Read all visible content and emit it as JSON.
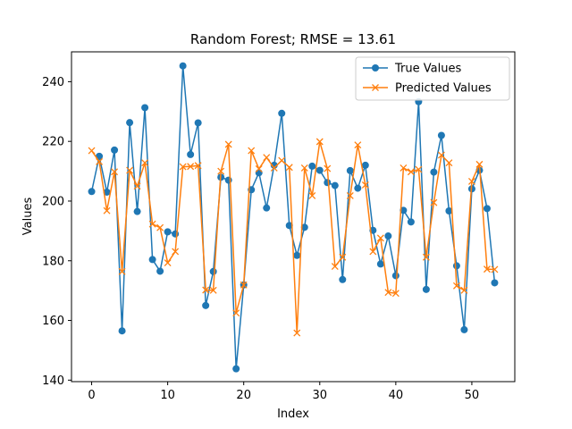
{
  "chart_data": {
    "type": "line",
    "title": "Random Forest; RMSE = 13.61",
    "xlabel": "Index",
    "ylabel": "Values",
    "xlim": [
      -2.65,
      55.65
    ],
    "ylim": [
      139.5,
      250.0
    ],
    "xticks": [
      0,
      10,
      20,
      30,
      40,
      50
    ],
    "yticks": [
      140,
      160,
      180,
      200,
      220,
      240
    ],
    "legend_position": "top-right",
    "grid": false,
    "series": [
      {
        "name": "True Values",
        "color": "#1f77b4",
        "marker": "circle",
        "x": [
          0,
          1,
          2,
          3,
          4,
          5,
          6,
          7,
          8,
          9,
          10,
          11,
          12,
          13,
          14,
          15,
          16,
          17,
          18,
          19,
          20,
          21,
          22,
          23,
          24,
          25,
          26,
          27,
          28,
          29,
          30,
          31,
          32,
          33,
          34,
          35,
          36,
          37,
          38,
          39,
          40,
          41,
          42,
          43,
          44,
          45,
          46,
          47,
          48,
          49,
          50,
          51,
          52,
          53
        ],
        "y": [
          203.2,
          215.0,
          203.0,
          217.1,
          156.5,
          226.3,
          196.5,
          231.3,
          180.4,
          176.5,
          189.7,
          189.0,
          245.3,
          215.6,
          226.2,
          165.0,
          176.4,
          208.0,
          207.0,
          143.8,
          171.9,
          203.8,
          209.5,
          197.7,
          212.0,
          229.4,
          191.8,
          181.8,
          191.2,
          211.7,
          210.3,
          206.2,
          205.2,
          173.7,
          210.2,
          204.3,
          212.0,
          190.2,
          178.9,
          188.3,
          175.0,
          196.9,
          193.0,
          233.3,
          170.4,
          209.7,
          222.0,
          196.7,
          178.3,
          156.9,
          204.1,
          210.3,
          197.5,
          172.6
        ]
      },
      {
        "name": "Predicted Values",
        "color": "#ff7f0e",
        "marker": "x",
        "x": [
          0,
          1,
          2,
          3,
          4,
          5,
          6,
          7,
          8,
          9,
          10,
          11,
          12,
          13,
          14,
          15,
          16,
          17,
          18,
          19,
          20,
          21,
          22,
          23,
          24,
          25,
          26,
          27,
          28,
          29,
          30,
          31,
          32,
          33,
          34,
          35,
          36,
          37,
          38,
          39,
          40,
          41,
          42,
          43,
          44,
          45,
          46,
          47,
          48,
          49,
          50,
          51,
          52,
          53
        ],
        "y": [
          216.9,
          213.2,
          196.8,
          209.8,
          176.4,
          210.3,
          205.0,
          212.8,
          192.3,
          191.1,
          179.3,
          183.1,
          211.5,
          211.6,
          211.9,
          170.2,
          170.1,
          210.0,
          219.0,
          162.5,
          171.9,
          216.9,
          210.8,
          214.6,
          211.1,
          213.6,
          211.3,
          155.8,
          211.1,
          201.8,
          219.9,
          210.9,
          178.1,
          181.2,
          201.8,
          218.8,
          205.4,
          183.1,
          187.6,
          169.4,
          169.1,
          211.1,
          209.8,
          210.6,
          181.2,
          199.5,
          215.4,
          212.8,
          171.6,
          170.1,
          206.6,
          212.3,
          177.2,
          177.1
        ]
      }
    ]
  }
}
